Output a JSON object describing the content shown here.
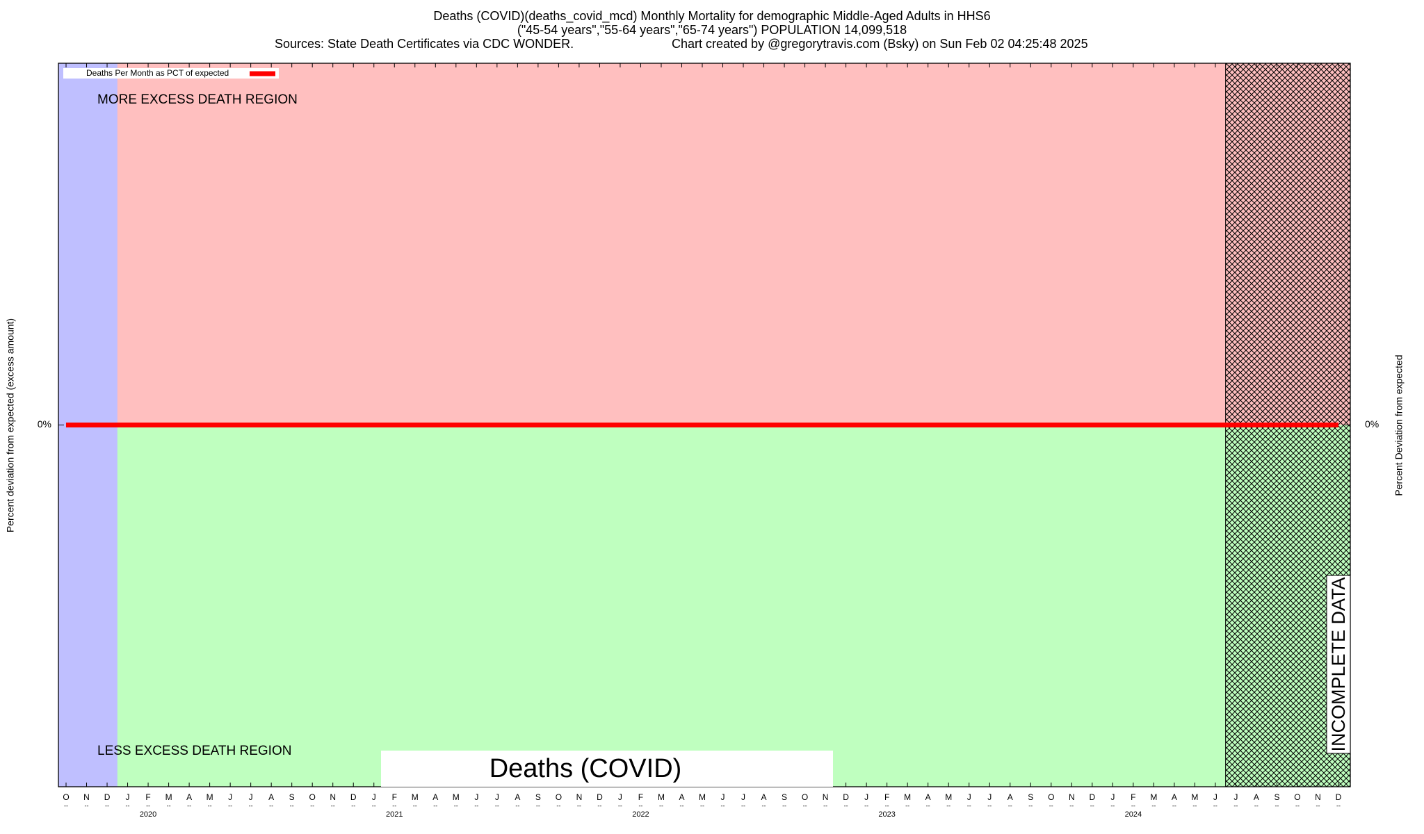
{
  "chart_data": {
    "type": "line",
    "title": [
      "Deaths (COVID)(deaths_covid_mcd) Monthly Mortality for demographic Middle-Aged Adults in HHS6",
      "(\"45-54 years\",\"55-64 years\",\"65-74 years\") POPULATION 14,099,518"
    ],
    "source": "Sources: State Death Certificates via CDC WONDER.",
    "credit": "Chart created by @gregorytravis.com (Bsky) on Sun Feb 02 04:25:48 2025",
    "y_label": "Percent deviation from expected (excess amount)",
    "y2_label": "Percent Deviation from expected",
    "upper_region_label": "MORE EXCESS DEATH REGION",
    "lower_region_label": "LESS EXCESS DEATH REGION",
    "incomplete_label": "INCOMPLETE DATA",
    "cause_label": "Deaths (COVID)",
    "categories": [
      "O",
      "N",
      "D",
      "J",
      "F",
      "M",
      "A",
      "M",
      "J",
      "J",
      "A",
      "S",
      "O",
      "N",
      "D",
      "J",
      "F",
      "M",
      "A",
      "M",
      "J",
      "J",
      "A",
      "S",
      "O",
      "N",
      "D",
      "J",
      "F",
      "M",
      "A",
      "M",
      "J",
      "J",
      "A",
      "S",
      "O",
      "N",
      "D",
      "J",
      "F",
      "M",
      "A",
      "M",
      "J",
      "J",
      "A",
      "S",
      "O",
      "N",
      "D",
      "J",
      "F",
      "M",
      "A",
      "M",
      "J",
      "J",
      "A",
      "S",
      "O",
      "N",
      "D"
    ],
    "tick_sublabel": "--",
    "years": [
      "2020",
      "2021",
      "2022",
      "2023",
      "2024"
    ],
    "baseline_region": [
      0,
      2
    ],
    "incomplete_region": [
      57,
      62
    ],
    "region_colors": {
      "baseline": "#bfbfff",
      "upper": "#ffbfbf",
      "lower": "#bfffbf"
    },
    "series": [
      {
        "name": "Deaths Per Month as PCT of expected",
        "color": "#ff0000",
        "values": [
          0,
          0,
          0,
          0,
          0,
          0,
          0,
          0,
          0,
          0,
          0,
          0,
          0,
          0,
          0,
          0,
          0,
          0,
          0,
          0,
          0,
          0,
          0,
          0,
          0,
          0,
          0,
          0,
          0,
          0,
          0,
          0,
          0,
          0,
          0,
          0,
          0,
          0,
          0,
          0,
          0,
          0,
          0,
          0,
          0,
          0,
          0,
          0,
          0,
          0,
          0,
          0,
          0,
          0,
          0,
          0,
          0,
          0,
          0,
          0,
          0,
          0,
          0
        ]
      }
    ],
    "ylim": [
      -1,
      1
    ],
    "yticks": [
      {
        "value": 0,
        "label": "0%"
      }
    ],
    "y2lim": [
      -1,
      1
    ],
    "y2ticks": [
      {
        "value": 0,
        "label": "0%"
      }
    ],
    "legend": "top-left"
  }
}
